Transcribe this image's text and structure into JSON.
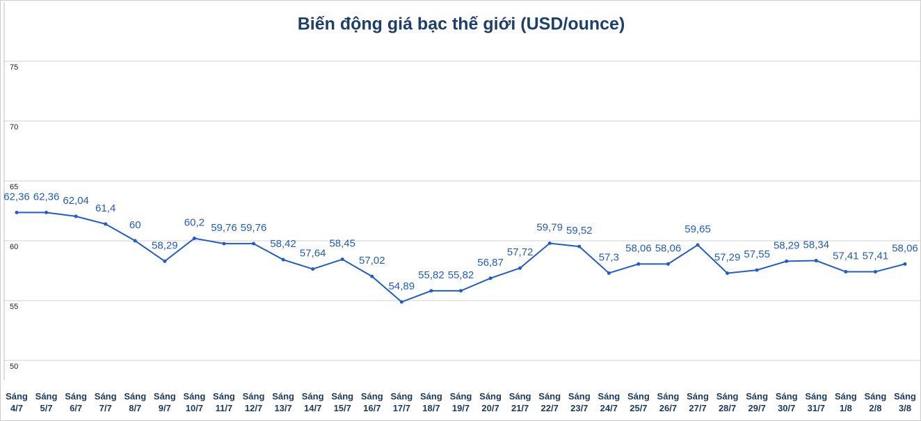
{
  "chart_data": {
    "type": "line",
    "title": "Biến động giá bạc thế giới (USD/ounce)",
    "categories": [
      "Sáng 4/7",
      "Sáng 5/7",
      "Sáng 6/7",
      "Sáng 7/7",
      "Sáng 8/7",
      "Sáng 9/7",
      "Sáng 10/7",
      "Sáng 11/7",
      "Sáng 12/7",
      "Sáng 13/7",
      "Sáng 14/7",
      "Sáng 15/7",
      "Sáng 16/7",
      "Sáng 17/7",
      "Sáng 18/7",
      "Sáng 19/7",
      "Sáng 20/7",
      "Sáng 21/7",
      "Sáng 22/7",
      "Sáng 23/7",
      "Sáng 24/7",
      "Sáng 25/7",
      "Sáng 26/7",
      "Sáng 27/7",
      "Sáng 28/7",
      "Sáng 29/7",
      "Sáng 30/7",
      "Sáng 31/7",
      "Sáng 1/8",
      "Sáng 2/8",
      "Sáng 3/8"
    ],
    "values": [
      62.36,
      62.36,
      62.04,
      61.4,
      60,
      58.29,
      60.2,
      59.76,
      59.76,
      58.42,
      57.64,
      58.45,
      57.02,
      54.89,
      55.82,
      55.82,
      56.87,
      57.72,
      59.79,
      59.52,
      57.3,
      58.06,
      58.06,
      59.65,
      57.29,
      57.55,
      58.29,
      58.34,
      57.41,
      57.41,
      58.06
    ],
    "value_labels": [
      "62,36",
      "62,36",
      "62,04",
      "61,4",
      "60",
      "58,29",
      "60,2",
      "59,76",
      "59,76",
      "58,42",
      "57,64",
      "58,45",
      "57,02",
      "54,89",
      "55,82",
      "55,82",
      "56,87",
      "57,72",
      "59,79",
      "59,52",
      "57,3",
      "58,06",
      "58,06",
      "59,65",
      "57,29",
      "57,55",
      "58,29",
      "58,34",
      "57,41",
      "57,41",
      "58,06"
    ],
    "color": "#1f5bd1",
    "ylim": [
      50,
      75
    ],
    "yticks": [
      50,
      55,
      60,
      65,
      70,
      75
    ],
    "grid": true
  }
}
